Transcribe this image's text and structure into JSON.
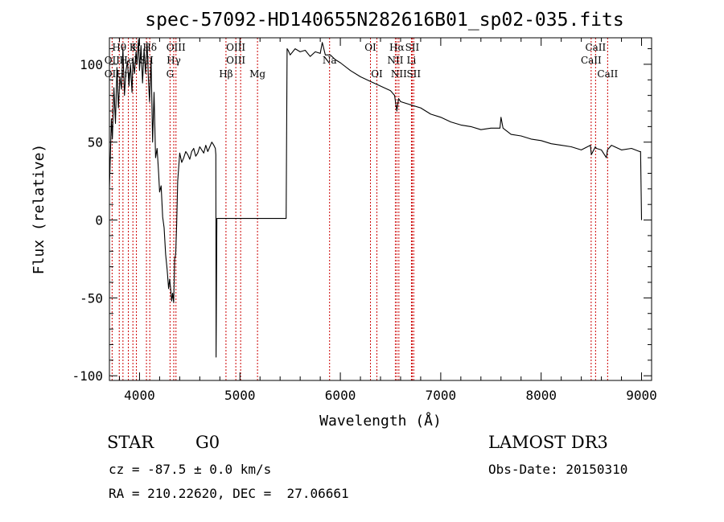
{
  "chart_data": {
    "type": "line",
    "title": "spec-57092-HD140655N282616B01_sp02-035.fits",
    "xlabel": "Wavelength (Å)",
    "ylabel": "Flux (relative)",
    "xlim": [
      3700,
      9100
    ],
    "ylim": [
      -103,
      117
    ],
    "x_ticks": [
      4000,
      5000,
      6000,
      7000,
      8000,
      9000
    ],
    "y_ticks": [
      -100,
      -50,
      0,
      50,
      100
    ],
    "series": [
      {
        "name": "spectrum",
        "x": [
          3700,
          3720,
          3730,
          3745,
          3760,
          3775,
          3790,
          3805,
          3820,
          3835,
          3850,
          3865,
          3880,
          3895,
          3910,
          3925,
          3935,
          3950,
          3965,
          3975,
          3990,
          4000,
          4015,
          4030,
          4045,
          4060,
          4075,
          4090,
          4100,
          4115,
          4130,
          4145,
          4160,
          4175,
          4190,
          4200,
          4215,
          4230,
          4245,
          4260,
          4275,
          4290,
          4300,
          4310,
          4320,
          4330,
          4340,
          4350,
          4360,
          4370,
          4380,
          4400,
          4420,
          4440,
          4460,
          4480,
          4500,
          4520,
          4540,
          4560,
          4580,
          4600,
          4620,
          4640,
          4660,
          4680,
          4700,
          4720,
          4740,
          4755,
          4760,
          4762,
          4770,
          4800,
          5000,
          5200,
          5400,
          5460,
          5470,
          5480,
          5500,
          5550,
          5600,
          5650,
          5700,
          5750,
          5800,
          5820,
          5850,
          5900,
          5950,
          6000,
          6100,
          6200,
          6300,
          6400,
          6500,
          6540,
          6563,
          6580,
          6600,
          6700,
          6800,
          6900,
          7000,
          7100,
          7200,
          7300,
          7400,
          7500,
          7590,
          7600,
          7620,
          7700,
          7800,
          7900,
          8000,
          8100,
          8200,
          8300,
          8400,
          8490,
          8500,
          8540,
          8550,
          8600,
          8650,
          8660,
          8700,
          8800,
          8900,
          8980,
          8990,
          9000
        ],
        "y": [
          20,
          65,
          52,
          85,
          62,
          98,
          72,
          92,
          84,
          110,
          80,
          96,
          102,
          86,
          100,
          82,
          104,
          94,
          108,
          100,
          116,
          96,
          112,
          88,
          110,
          94,
          114,
          88,
          76,
          104,
          50,
          82,
          40,
          46,
          30,
          18,
          22,
          2,
          -5,
          -22,
          -32,
          -44,
          -38,
          -44,
          -52,
          -47,
          -53,
          -25,
          -22,
          -3,
          25,
          43,
          37,
          40,
          44,
          42,
          39,
          44,
          46,
          41,
          43,
          47,
          45,
          43,
          48,
          44,
          47,
          50,
          48,
          46,
          42,
          -88,
          1,
          1,
          1,
          1,
          1,
          1,
          110,
          109,
          106,
          110,
          108,
          109,
          105,
          108,
          107,
          114,
          106,
          106,
          103,
          101,
          96,
          92,
          89,
          86,
          83,
          80,
          70,
          78,
          76,
          74,
          72,
          68,
          66,
          63,
          61,
          60,
          58,
          59,
          59,
          66,
          59,
          55,
          54,
          52,
          51,
          49,
          48,
          47,
          45,
          48,
          42,
          47,
          46,
          45,
          40,
          45,
          48,
          45,
          46,
          44,
          44,
          0
        ]
      }
    ],
    "annotations": [
      {
        "label": "Hθ",
        "x": 3798,
        "row": 1
      },
      {
        "label": "OII",
        "x": 3727,
        "row": 2
      },
      {
        "label": "OII",
        "x": 3727,
        "row": 3
      },
      {
        "label": "HeI",
        "x": 3889,
        "row": 2
      },
      {
        "label": "K",
        "x": 3934,
        "row": 1
      },
      {
        "label": "Hη",
        "x": 3835,
        "row": 3
      },
      {
        "label": "H",
        "x": 3969,
        "row": 1
      },
      {
        "label": "SII",
        "x": 4069,
        "row": 2
      },
      {
        "label": "Hδ",
        "x": 4102,
        "row": 1
      },
      {
        "label": "OIII",
        "x": 4363,
        "row": 1
      },
      {
        "label": "Hγ",
        "x": 4341,
        "row": 2
      },
      {
        "label": "G",
        "x": 4304,
        "row": 3
      },
      {
        "label": "OIII",
        "x": 4959,
        "row": 1
      },
      {
        "label": "OIII",
        "x": 4959,
        "row": 2
      },
      {
        "label": "Hβ",
        "x": 4861,
        "row": 3
      },
      {
        "label": "Mg",
        "x": 5175,
        "row": 3
      },
      {
        "label": "Na",
        "x": 5893,
        "row": 2
      },
      {
        "label": "OI",
        "x": 6300,
        "row": 1
      },
      {
        "label": "OI",
        "x": 6364,
        "row": 3
      },
      {
        "label": "Hα",
        "x": 6563,
        "row": 1
      },
      {
        "label": "SII",
        "x": 6716,
        "row": 1
      },
      {
        "label": "NII",
        "x": 6548,
        "row": 2
      },
      {
        "label": "Li",
        "x": 6708,
        "row": 2
      },
      {
        "label": "NII",
        "x": 6583,
        "row": 3
      },
      {
        "label": "SII",
        "x": 6731,
        "row": 3
      },
      {
        "label": "CaII",
        "x": 8542,
        "row": 1
      },
      {
        "label": "CaII",
        "x": 8498,
        "row": 2
      },
      {
        "label": "CaII",
        "x": 8662,
        "row": 3
      }
    ],
    "line_markers": [
      3727,
      3798,
      3835,
      3889,
      3934,
      3969,
      4069,
      4102,
      4304,
      4341,
      4363,
      4861,
      4959,
      5007,
      5175,
      5893,
      6300,
      6364,
      6548,
      6563,
      6583,
      6708,
      6716,
      6731,
      8498,
      8542,
      8662
    ]
  },
  "info": {
    "object_class": "STAR",
    "subclass": "G0",
    "survey": "LAMOST DR3",
    "redshift": "cz = -87.5 ± 0.0 km/s",
    "obs_date": "Obs-Date: 20150310",
    "coords": "RA = 210.22620, DEC =  27.06661"
  },
  "colors": {
    "spectrum": "#000000",
    "marker": "#cc0000",
    "axes": "#000000"
  }
}
